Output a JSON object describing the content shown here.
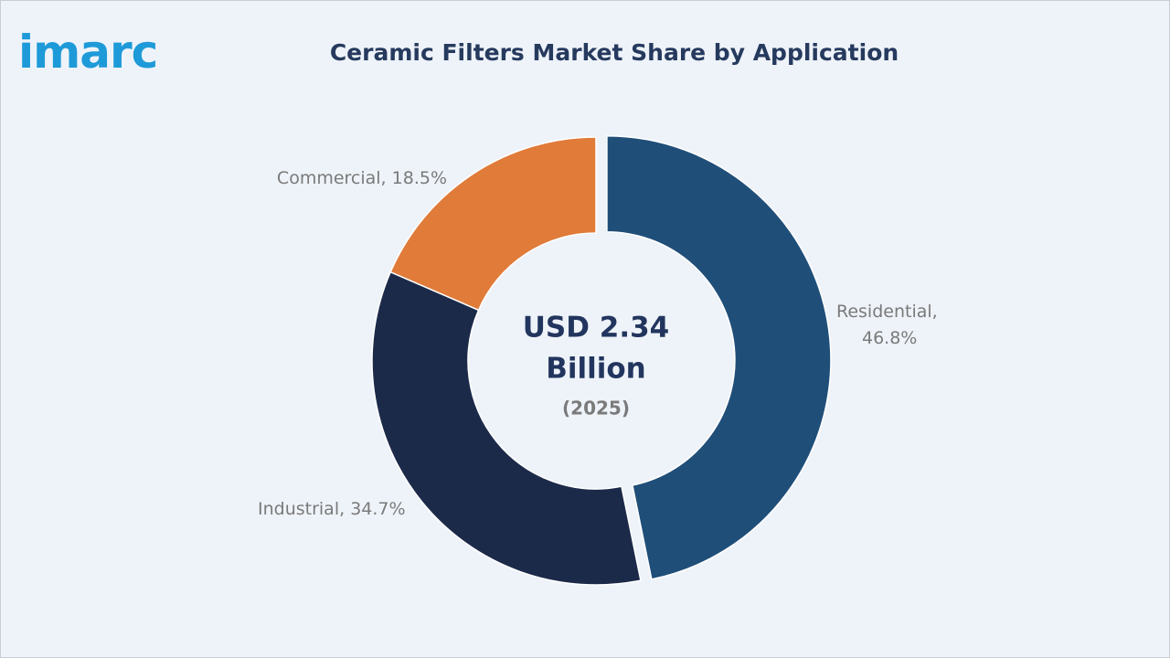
{
  "logo": "imarc",
  "chart_data": {
    "type": "pie",
    "title": "Ceramic Filters Market Share by Application",
    "values": [
      46.8,
      34.7,
      18.5
    ],
    "value_labels": [
      "Residential, 46.8%",
      "Industrial, 34.7%",
      "Commercial, 18.5%"
    ],
    "colors": [
      "#1f4e79",
      "#1c2a4a",
      "#e07b39"
    ],
    "donut": true,
    "exploded": [
      0
    ],
    "center_text": [
      "USD 2.34",
      "Billion",
      "(2025)"
    ]
  }
}
